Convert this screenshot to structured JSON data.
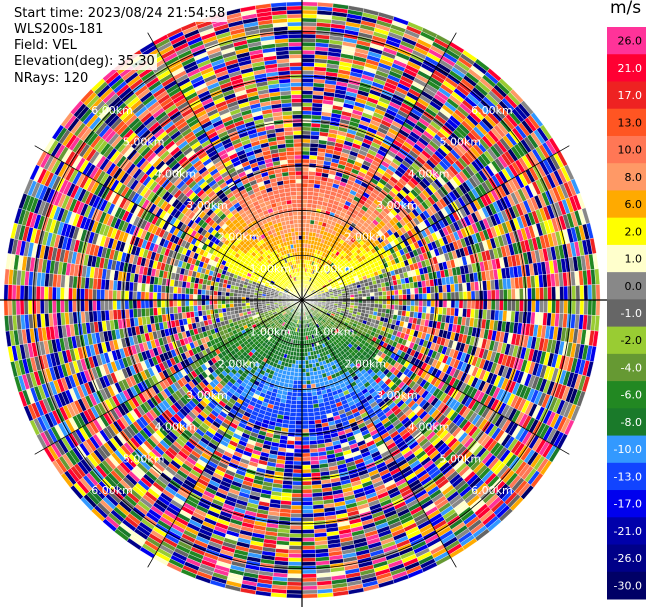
{
  "header": {
    "start_time": "Start time: 2023/08/24 21:54:58",
    "instrument": "WLS200s-181",
    "field": "Field: VEL",
    "elevation": "Elevation(deg): 35.30",
    "nrays": "NRays: 120"
  },
  "colorbar": {
    "units": "m/s",
    "levels": [
      {
        "label": "26.0",
        "color": "#ff3399"
      },
      {
        "label": "21.0",
        "color": "#ff0033"
      },
      {
        "label": "17.0",
        "color": "#ee2222"
      },
      {
        "label": "13.0",
        "color": "#ff5522"
      },
      {
        "label": "10.0",
        "color": "#ff7755"
      },
      {
        "label": "8.0",
        "color": "#ff9966"
      },
      {
        "label": "6.0",
        "color": "#ffaa00"
      },
      {
        "label": "2.0",
        "color": "#ffff00"
      },
      {
        "label": "1.0",
        "color": "#ffffcc"
      },
      {
        "label": "0.0",
        "color": "#888888"
      },
      {
        "label": "-1.0",
        "color": "#666666"
      },
      {
        "label": "-2.0",
        "color": "#99cc33"
      },
      {
        "label": "-4.0",
        "color": "#669933"
      },
      {
        "label": "-6.0",
        "color": "#228822"
      },
      {
        "label": "-8.0",
        "color": "#1a7a2a"
      },
      {
        "label": "-10.0",
        "color": "#3399ff"
      },
      {
        "label": "-13.0",
        "color": "#1144ff"
      },
      {
        "label": "-17.0",
        "color": "#0000ee"
      },
      {
        "label": "-21.0",
        "color": "#0000aa"
      },
      {
        "label": "-26.0",
        "color": "#000088"
      },
      {
        "label": "-30.0",
        "color": "#000066"
      }
    ]
  },
  "chart_data": {
    "type": "heatmap",
    "title": "",
    "field": "VEL",
    "nrays": 120,
    "range_labels": [
      {
        "label": "1.00km",
        "positions": [
          "nw",
          "ne",
          "sw",
          "se"
        ]
      },
      {
        "label": "2.00km",
        "positions": [
          "nw",
          "ne",
          "sw",
          "se"
        ]
      },
      {
        "label": "3.00km",
        "positions": [
          "nw",
          "ne",
          "sw",
          "se"
        ]
      },
      {
        "label": "4.00km",
        "positions": [
          "nw",
          "ne",
          "sw",
          "se"
        ]
      },
      {
        "label": "5.00km",
        "positions": [
          "nw",
          "ne",
          "sw",
          "se"
        ]
      },
      {
        "label": "6.00km",
        "positions": [
          "nw",
          "ne",
          "sw",
          "se"
        ]
      }
    ],
    "range_rings_km": [
      1,
      2,
      3,
      4,
      5,
      6
    ],
    "max_range_km": 6.7,
    "velocity_pattern": {
      "north_sector": "positive (2 to 13 m/s) near center",
      "south_sector": "negative (-4 to -13 m/s) near center",
      "east_west": "near zero (0 to -2 m/s)",
      "outer_ranges": "noise (random values)"
    }
  }
}
